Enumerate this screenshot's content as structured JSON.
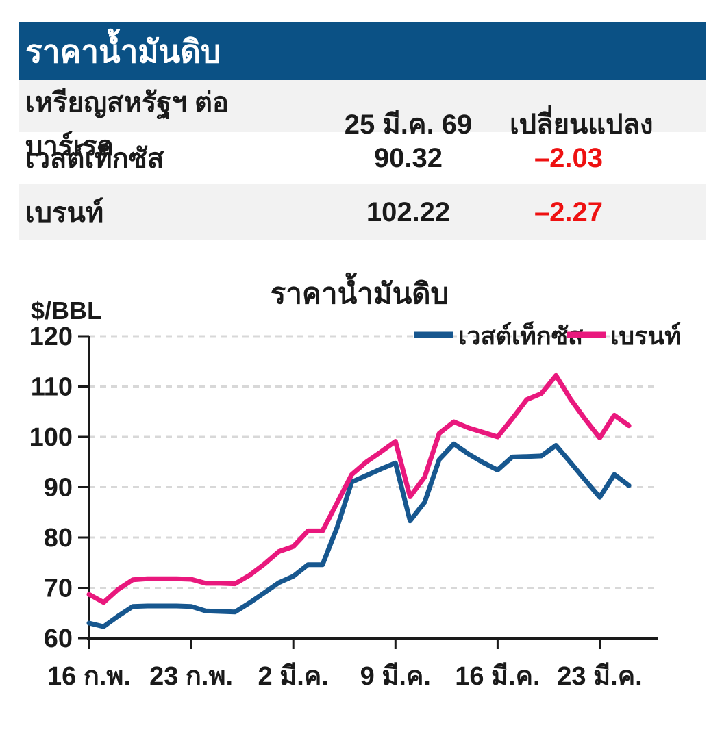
{
  "table": {
    "title": "ราคาน้ำมันดิบ",
    "columns": [
      "เหรียญสหรัฐฯ ต่อบาร์เรล",
      "25 มี.ค. 69",
      "เปลี่ยนแปลง"
    ],
    "rows": [
      {
        "name": "เวสต์เท็กซัส",
        "price": "90.32",
        "change": "–2.03"
      },
      {
        "name": "เบรนท์",
        "price": "102.22",
        "change": "–2.27"
      }
    ],
    "colors": {
      "header_bg": "#0b5185",
      "header_text": "#ffffff",
      "row_alt_bg": "#f2f2f2",
      "negative": "#ee1111"
    }
  },
  "chart_data": {
    "type": "line",
    "title": "ราคาน้ำมันดิบ",
    "ylabel": "$/BBL",
    "ylim": [
      60,
      120
    ],
    "y_ticks": [
      60,
      70,
      80,
      90,
      100,
      110,
      120
    ],
    "grid": "horizontal-dashed",
    "legend_position": "top-right",
    "x_tick_labels": [
      "16 ก.พ.",
      "23 ก.พ.",
      "2 มี.ค.",
      "9 มี.ค.",
      "16 มี.ค.",
      "23 มี.ค."
    ],
    "points_per_tick": 7,
    "x_last_label": "25 มี.ค. 69",
    "colors": {
      "axis": "#1a1a1a",
      "grid": "#d8d8d8"
    },
    "series": [
      {
        "name": "เวสต์เท็กซัส",
        "color": "#17578f",
        "values": [
          63.0,
          62.3,
          64.4,
          66.3,
          66.4,
          66.4,
          66.4,
          66.3,
          65.4,
          65.3,
          65.2,
          67.0,
          69.0,
          71.0,
          72.3,
          74.6,
          74.6,
          82.0,
          91.0,
          92.3,
          93.6,
          94.8,
          83.3,
          87.0,
          95.5,
          98.6,
          96.6,
          94.9,
          93.4,
          96.0,
          96.1,
          96.2,
          98.3,
          94.9,
          91.4,
          88.0,
          92.5,
          90.32
        ]
      },
      {
        "name": "เบรนท์",
        "color": "#e9187d",
        "values": [
          68.7,
          67.1,
          69.7,
          71.6,
          71.8,
          71.8,
          71.8,
          71.7,
          70.9,
          70.9,
          70.8,
          72.5,
          74.7,
          77.2,
          78.2,
          81.3,
          81.3,
          86.9,
          92.5,
          95.0,
          97.0,
          99.1,
          88.1,
          92.0,
          100.7,
          103.0,
          101.8,
          100.9,
          100.0,
          103.6,
          107.4,
          108.6,
          112.2,
          107.5,
          103.5,
          99.8,
          104.3,
          102.22
        ]
      }
    ]
  }
}
